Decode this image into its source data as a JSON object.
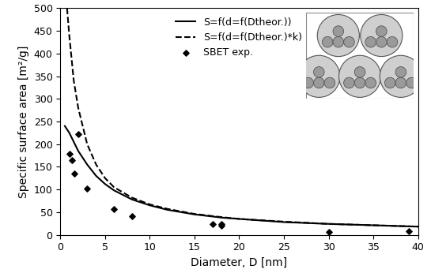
{
  "chart_data": {
    "type": "line",
    "x_label": "Diameter, D [nm]",
    "y_label": "Specific surface area [m²/g]",
    "xlim": [
      0,
      40
    ],
    "xticks": [
      0,
      5,
      10,
      15,
      20,
      25,
      30,
      35,
      40
    ],
    "ylim": [
      0,
      500
    ],
    "yticks": [
      0,
      50,
      100,
      150,
      200,
      250,
      300,
      350,
      400,
      450,
      500
    ],
    "grid": false,
    "legend": "upper center",
    "series": [
      {
        "name": "S=f(d=f(Dtheor.))",
        "type": "line",
        "line_style": "solid",
        "color": "#000000",
        "x": [
          0.5,
          1,
          1.5,
          2,
          3,
          4,
          5,
          6,
          8,
          10,
          12,
          15,
          18,
          20,
          25,
          30,
          35,
          40
        ],
        "values": [
          240,
          225,
          205,
          185,
          155,
          130,
          112,
          98,
          78,
          65,
          55,
          45,
          38,
          35,
          28,
          24,
          21,
          18
        ]
      },
      {
        "name": "S=f(d=f(Dtheor.)*k)",
        "type": "line",
        "line_style": "dashed",
        "color": "#000000",
        "x": [
          0.75,
          1,
          1.5,
          2,
          3,
          4,
          5,
          6,
          8,
          10,
          12,
          15,
          18,
          20,
          25,
          30,
          35,
          40
        ],
        "values": [
          500,
          440,
          340,
          280,
          200,
          155,
          125,
          105,
          82,
          67,
          57,
          46,
          39,
          35,
          29,
          24,
          21,
          18
        ]
      },
      {
        "name": "SBET exp.",
        "type": "scatter",
        "marker": "diamond",
        "color": "#000000",
        "x": [
          1,
          1.3,
          1.6,
          2,
          3,
          6,
          8,
          17,
          18,
          18,
          30,
          39
        ],
        "values": [
          178,
          165,
          135,
          222,
          102,
          57,
          41,
          24,
          24,
          20,
          7,
          8
        ]
      }
    ]
  }
}
